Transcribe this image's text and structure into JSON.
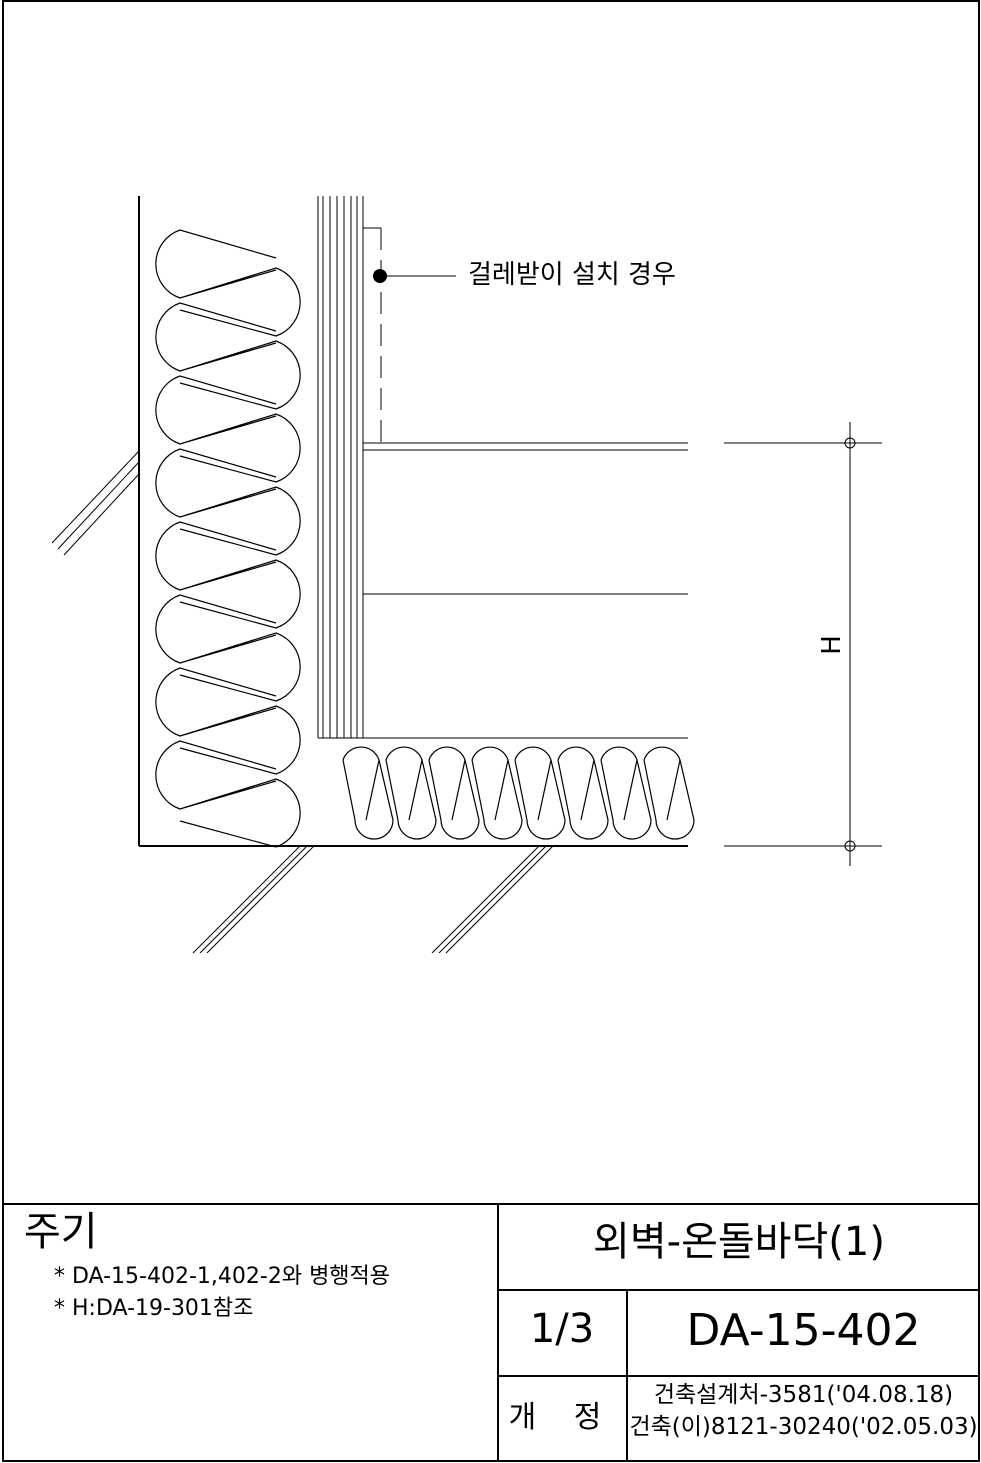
{
  "detail": {
    "callout_label": "걸레받이 설치 경우",
    "dimension_label": "H"
  },
  "notes": {
    "heading": "주기",
    "items": [
      "* DA-15-402-1,402-2와 병행적용",
      "* H:DA-19-301참조"
    ]
  },
  "title_block": {
    "title": "외벽-온돌바닥(1)",
    "sheet": "1/3",
    "drawing_number": "DA-15-402",
    "revision_label": "개 정",
    "revisions": [
      "건축설계처-3581('04.08.18)",
      "건축(이)8121-30240('02.05.03)"
    ]
  }
}
